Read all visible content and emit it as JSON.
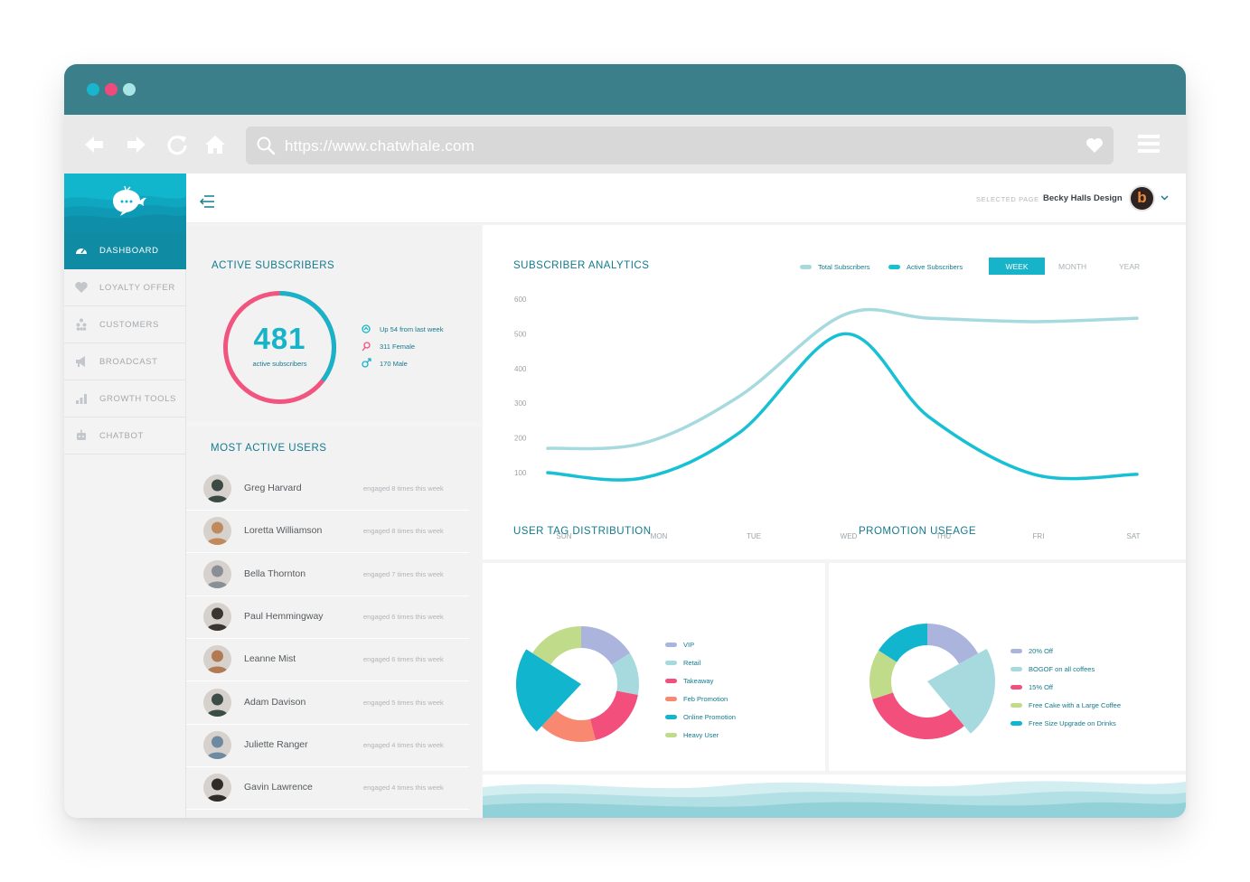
{
  "browser": {
    "url": "https://www.chatwhale.com",
    "dots": [
      "#18b6cc",
      "#ee4b7c",
      "#a9e4e6"
    ]
  },
  "sidebar": {
    "items": [
      {
        "label": "DASHBOARD",
        "icon": "speedometer-icon",
        "active": true
      },
      {
        "label": "LOYALTY OFFER",
        "icon": "heart-icon",
        "active": false
      },
      {
        "label": "CUSTOMERS",
        "icon": "people-icon",
        "active": false
      },
      {
        "label": "BROADCAST",
        "icon": "megaphone-icon",
        "active": false
      },
      {
        "label": "GROWTH TOOLS",
        "icon": "bar-chart-icon",
        "active": false
      },
      {
        "label": "CHATBOT",
        "icon": "robot-icon",
        "active": false
      }
    ]
  },
  "header": {
    "selected_page_label": "SELECTED PAGE",
    "selected_page_value": "Becky Halls Design",
    "avatar_letter": "b"
  },
  "active_subscribers": {
    "title": "ACTIVE SUBSCRIBERS",
    "count": "481",
    "count_label": "active subscribers",
    "stats": [
      "Up 54 from last week",
      "311 Female",
      "170 Male"
    ],
    "female": 311,
    "male": 170
  },
  "most_active_users": {
    "title": "MOST ACTIVE USERS",
    "users": [
      {
        "name": "Greg Harvard",
        "engagement": "engaged 8 times this week"
      },
      {
        "name": "Loretta Williamson",
        "engagement": "engaged 8 times this week"
      },
      {
        "name": "Bella Thornton",
        "engagement": "engaged 7 times this week"
      },
      {
        "name": "Paul Hemmingway",
        "engagement": "engaged 6 times this week"
      },
      {
        "name": "Leanne Mist",
        "engagement": "engaged 6 times this week"
      },
      {
        "name": "Adam Davison",
        "engagement": "engaged 5 times this week"
      },
      {
        "name": "Juliette Ranger",
        "engagement": "engaged 4 times this week"
      },
      {
        "name": "Gavin Lawrence",
        "engagement": "engaged 4 times this week"
      }
    ]
  },
  "analytics": {
    "title": "SUBSCRIBER ANALYTICS",
    "ranges": [
      "WEEK",
      "MONTH",
      "YEAR"
    ],
    "active_range": "WEEK"
  },
  "tag_distribution": {
    "title": "USER TAG DISTRIBUTION"
  },
  "promotion": {
    "title": "PROMOTION USEAGE"
  },
  "chart_data": [
    {
      "type": "line",
      "x": [
        "SUN",
        "MON",
        "TUE",
        "WED",
        "THU",
        "FRI",
        "SAT"
      ],
      "yticks": [
        100,
        200,
        300,
        400,
        500,
        600
      ],
      "ylim": [
        0,
        640
      ],
      "series": [
        {
          "name": "Total Subscribers",
          "color": "#a6dadf",
          "values": [
            170,
            185,
            320,
            555,
            545,
            535,
            545
          ]
        },
        {
          "name": "Active Subscribers",
          "color": "#17c0d2",
          "values": [
            100,
            85,
            215,
            500,
            260,
            95,
            95
          ]
        }
      ]
    },
    {
      "type": "pie",
      "labels": [
        "VIP",
        "Retail",
        "Takeaway",
        "Feb Promotion",
        "Online Promotion",
        "Heavy User"
      ],
      "values": [
        16,
        12,
        18,
        16,
        22,
        16
      ],
      "colors": [
        "#aab4dc",
        "#a6dadf",
        "#f34f7d",
        "#f8886f",
        "#11b5cd",
        "#c0dc8a"
      ]
    },
    {
      "type": "pie",
      "labels": [
        "20% Off",
        "BOGOF on all coffees",
        "15% Off",
        "Free Cake with a Large Coffee",
        "Free Size Upgrade on Drinks"
      ],
      "values": [
        17,
        22,
        31,
        14,
        16
      ],
      "colors": [
        "#aab4dc",
        "#a6dadf",
        "#f34f7d",
        "#c0dc8a",
        "#11b5cd"
      ]
    }
  ]
}
